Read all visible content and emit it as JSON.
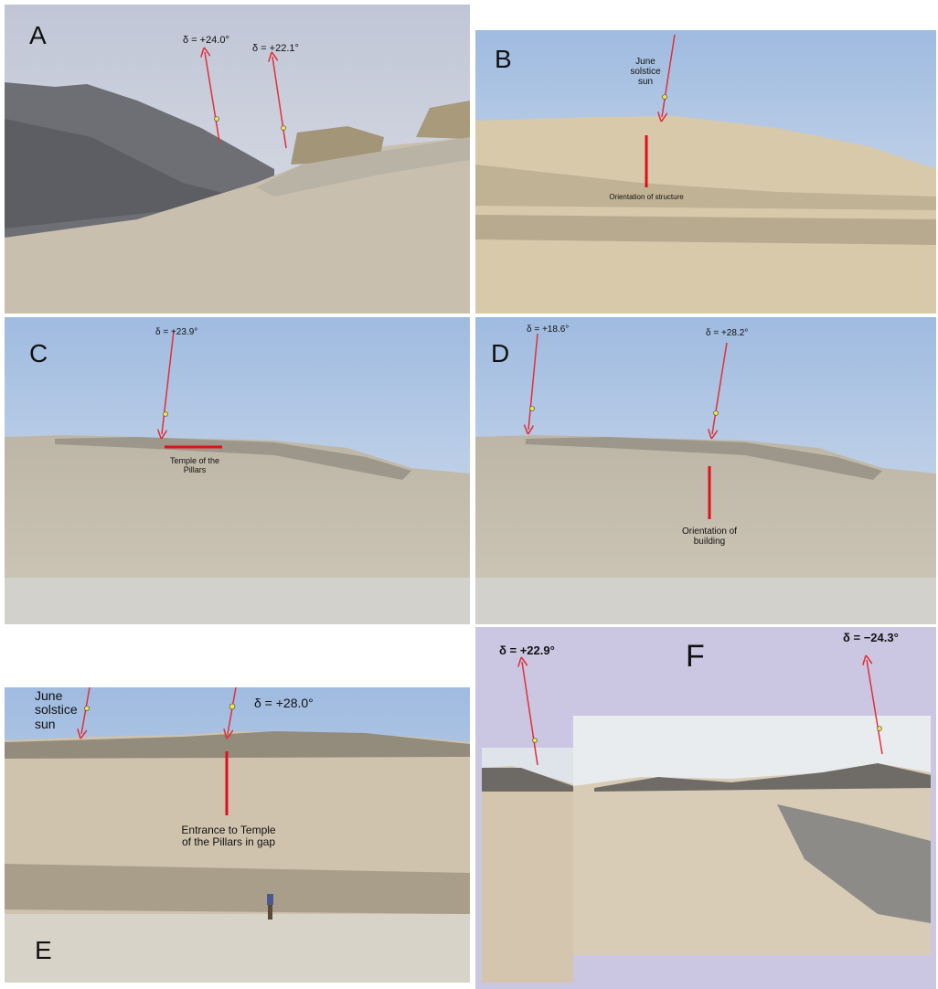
{
  "panels": [
    {
      "label": "A",
      "notes": [
        "δ = +24.0°",
        "δ = +22.1°"
      ]
    },
    {
      "label": "B",
      "notes": [
        "June solstice sun",
        "Orientation of structure"
      ]
    },
    {
      "label": "C",
      "notes": [
        "δ = +23.9°",
        "Temple of the Pillars"
      ]
    },
    {
      "label": "D",
      "notes": [
        "δ = +18.6°",
        "δ = +28.2°",
        "Orientation of building"
      ]
    },
    {
      "label": "E",
      "notes": [
        "June solstice sun",
        "δ = +28.0°",
        "Entrance to Temple of the Pillars in gap"
      ]
    },
    {
      "label": "F",
      "notes": [
        "δ = +22.9°",
        "δ = −24.3°"
      ]
    }
  ]
}
